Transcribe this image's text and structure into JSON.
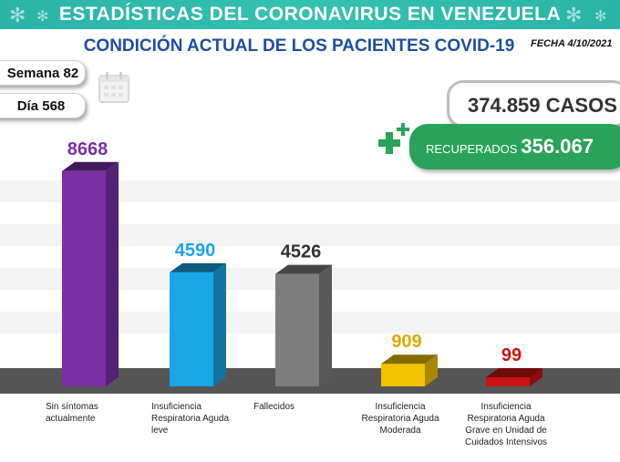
{
  "banner": {
    "title": "ESTADÍSTICAS DEL CORONAVIRUS EN VENEZUELA"
  },
  "header": {
    "subtitle": "CONDICIÓN ACTUAL DE LOS PACIENTES COVID-19",
    "fecha": "FECHA 4/10/2021"
  },
  "info": {
    "semana": "Semana 82",
    "dia": "Día 568",
    "calendar_icon": "calendar-icon"
  },
  "totals": {
    "casos": "374.859 CASOS",
    "recuperados_label": "RECUPERADOS",
    "recuperados_value": "356.067",
    "plus_icon": "medical-plus-icon"
  },
  "colors": {
    "banner": "#2bb3a8",
    "subtitle": "#1e4fa0",
    "recuperados": "#2aa35a"
  },
  "chart_data": {
    "type": "bar",
    "categories": [
      "Sin síntomas actualmente",
      "Insuficiencia Respiratoria Aguda leve",
      "Fallecidos",
      "Insuficiencia Respiratoria Aguda Moderada",
      "Insuficiencia Respiratoria Aguda Grave en Unidad de Cuidados Intensivos"
    ],
    "values": [
      8668,
      4590,
      4526,
      909,
      99
    ],
    "value_labels": [
      "8668",
      "4590",
      "4526",
      "909",
      "99"
    ],
    "colors": [
      "#7a2fa6",
      "#19a6e8",
      "#7d7d7d",
      "#f2c200",
      "#c81414"
    ],
    "label_colors": [
      "#7a2fa6",
      "#19a6e8",
      "#333333",
      "#e0a800",
      "#c81414"
    ],
    "title": "",
    "xlabel": "",
    "ylabel": "",
    "ylim": [
      0,
      9000
    ],
    "grid": true,
    "legend": "none"
  }
}
